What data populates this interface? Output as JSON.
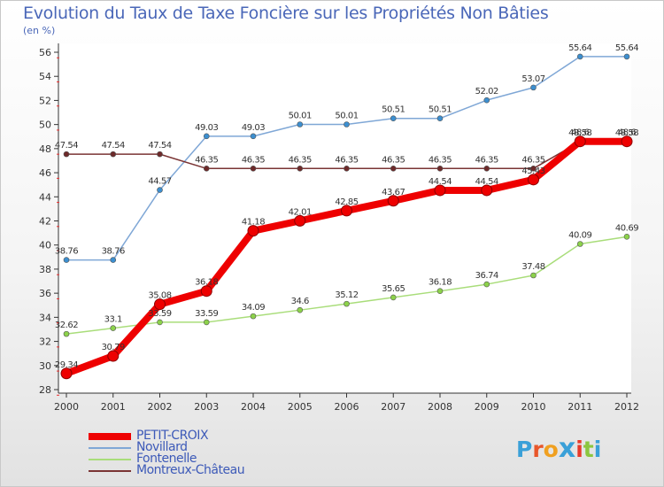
{
  "title": "Evolution du Taux de Taxe Foncière sur les Propriétés Non Bâties",
  "subtitle": "(en %)",
  "logo": {
    "text": "Proxiti",
    "letters": [
      {
        "ch": "P",
        "color": "#3aa0d8"
      },
      {
        "ch": "r",
        "color": "#e8562a"
      },
      {
        "ch": "o",
        "color": "#f0a020"
      },
      {
        "ch": "x",
        "color": "#3aa0d8"
      },
      {
        "ch": "i",
        "color": "#e83a2a"
      },
      {
        "ch": "t",
        "color": "#8cc63f"
      },
      {
        "ch": "i",
        "color": "#3aa0d8"
      }
    ]
  },
  "chart_data": {
    "type": "line",
    "title": "Evolution du Taux de Taxe Foncière sur les Propriétés Non Bâties",
    "ylabel": "(en %)",
    "xlabel": "",
    "ylim": [
      28,
      56
    ],
    "y_ticks": [
      28,
      30,
      32,
      34,
      36,
      38,
      40,
      42,
      44,
      46,
      48,
      50,
      52,
      54,
      56
    ],
    "x": [
      "2000",
      "2001",
      "2002",
      "2003",
      "2004",
      "2005",
      "2006",
      "2007",
      "2008",
      "2009",
      "2010",
      "2011",
      "2012"
    ],
    "grid": false,
    "legend_position": "bottom-left",
    "series": [
      {
        "name": "Novillard",
        "color": "#7fa7d6",
        "marker_fill": "#3c8fd0",
        "style": "thin",
        "values": [
          38.76,
          38.76,
          44.57,
          49.03,
          49.03,
          50.01,
          50.01,
          50.51,
          50.51,
          52.02,
          53.07,
          55.64,
          55.64
        ],
        "labels": [
          "38.76",
          "38.76",
          "44.57",
          "49.03",
          "49.03",
          "50.01",
          "50.01",
          "50.51",
          "50.51",
          "52.02",
          "53.07",
          "55.64",
          "55.64"
        ]
      },
      {
        "name": "Montreux-Château",
        "color": "#7a3434",
        "marker_fill": "#6e2a2a",
        "style": "thin",
        "values": [
          47.54,
          47.54,
          47.54,
          46.35,
          46.35,
          46.35,
          46.35,
          46.35,
          46.35,
          46.35,
          46.35,
          48.58,
          48.58
        ],
        "labels": [
          "47.54",
          "47.54",
          "47.54",
          "46.35",
          "46.35",
          "46.35",
          "46.35",
          "46.35",
          "46.35",
          "46.35",
          "46.35",
          "48.58",
          "48.58"
        ]
      },
      {
        "name": "Fontenelle",
        "color": "#a9dd7a",
        "marker_fill": "#8cd24a",
        "style": "thin",
        "values": [
          32.62,
          33.1,
          33.59,
          33.59,
          34.09,
          34.6,
          35.12,
          35.65,
          36.18,
          36.74,
          37.48,
          40.09,
          40.69
        ],
        "labels": [
          "32.62",
          "33.1",
          "33.59",
          "33.59",
          "34.09",
          "34.6",
          "35.12",
          "35.65",
          "36.18",
          "36.74",
          "37.48",
          "40.09",
          "40.69"
        ]
      },
      {
        "name": "PETIT-CROIX",
        "color": "#ee0000",
        "marker_fill": "#ee0000",
        "style": "thick",
        "values": [
          29.34,
          30.79,
          35.08,
          36.18,
          41.18,
          42.01,
          42.85,
          43.67,
          44.54,
          44.54,
          45.43,
          48.6,
          48.6
        ],
        "labels": [
          "29.34",
          "30.79",
          "35.08",
          "36.18",
          "41.18",
          "42.01",
          "42.85",
          "43.67",
          "44.54",
          "44.54",
          "45.43",
          "48.6",
          "48.6"
        ]
      }
    ]
  },
  "legend": [
    {
      "label": "PETIT-CROIX",
      "color": "#ee0000",
      "thickness": 8
    },
    {
      "label": "Novillard",
      "color": "#7fa7d6",
      "thickness": 2
    },
    {
      "label": "Fontenelle",
      "color": "#a9dd7a",
      "thickness": 2
    },
    {
      "label": "Montreux-Château",
      "color": "#7a3434",
      "thickness": 2
    }
  ]
}
